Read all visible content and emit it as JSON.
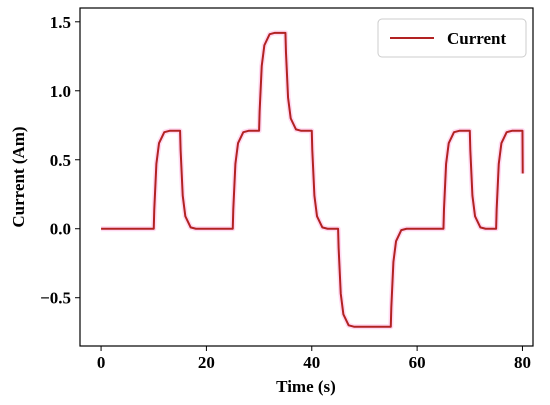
{
  "chart_data": {
    "type": "line",
    "title": "",
    "xlabel": "Time (s)",
    "ylabel": "Current (Am)",
    "xlim": [
      -4,
      82
    ],
    "ylim": [
      -0.85,
      1.6
    ],
    "grid": false,
    "legend_position": "top-right",
    "x_ticks": [
      0,
      20,
      40,
      60,
      80
    ],
    "x_tick_labels": [
      "0",
      "20",
      "40",
      "60",
      "80"
    ],
    "y_ticks": [
      -0.5,
      0.0,
      0.5,
      1.0,
      1.5
    ],
    "y_tick_labels": [
      "−0.5",
      "0.0",
      "0.5",
      "1.0",
      "1.5"
    ],
    "series": [
      {
        "name": "Current",
        "color": "#b22222",
        "x": [
          0,
          10,
          10.1,
          10.5,
          11,
          12,
          13,
          14,
          15,
          15.1,
          15.5,
          16,
          17,
          18,
          19,
          20,
          25,
          25.1,
          25.5,
          26,
          27,
          28,
          29,
          30,
          30.1,
          30.5,
          31,
          32,
          33,
          34,
          35,
          35.1,
          35.5,
          36,
          37,
          38,
          39,
          40,
          40.1,
          40.5,
          41,
          42,
          43,
          44,
          45,
          45.1,
          45.5,
          46,
          47,
          48,
          49,
          50,
          55,
          55.1,
          55.5,
          56,
          57,
          58,
          59,
          60,
          65,
          65.1,
          65.5,
          66,
          67,
          68,
          69,
          70,
          70.1,
          70.5,
          71,
          72,
          73,
          74,
          75,
          75.1,
          75.5,
          76,
          77,
          78,
          79,
          80,
          80.05
        ],
        "values": [
          0,
          0,
          0.14,
          0.47,
          0.62,
          0.7,
          0.71,
          0.71,
          0.71,
          0.57,
          0.24,
          0.09,
          0.01,
          0,
          0,
          0,
          0,
          0.14,
          0.47,
          0.62,
          0.7,
          0.71,
          0.71,
          0.71,
          0.85,
          1.18,
          1.33,
          1.41,
          1.42,
          1.42,
          1.42,
          1.28,
          0.95,
          0.8,
          0.72,
          0.71,
          0.71,
          0.71,
          0.57,
          0.24,
          0.09,
          0.01,
          0,
          0,
          0,
          -0.14,
          -0.47,
          -0.62,
          -0.7,
          -0.71,
          -0.71,
          -0.71,
          -0.71,
          -0.57,
          -0.24,
          -0.09,
          -0.01,
          0,
          0,
          0,
          0,
          0.14,
          0.47,
          0.62,
          0.7,
          0.71,
          0.71,
          0.71,
          0.57,
          0.24,
          0.09,
          0.01,
          0,
          0,
          0,
          0.14,
          0.47,
          0.62,
          0.7,
          0.71,
          0.71,
          0.71,
          0.4
        ]
      }
    ]
  }
}
